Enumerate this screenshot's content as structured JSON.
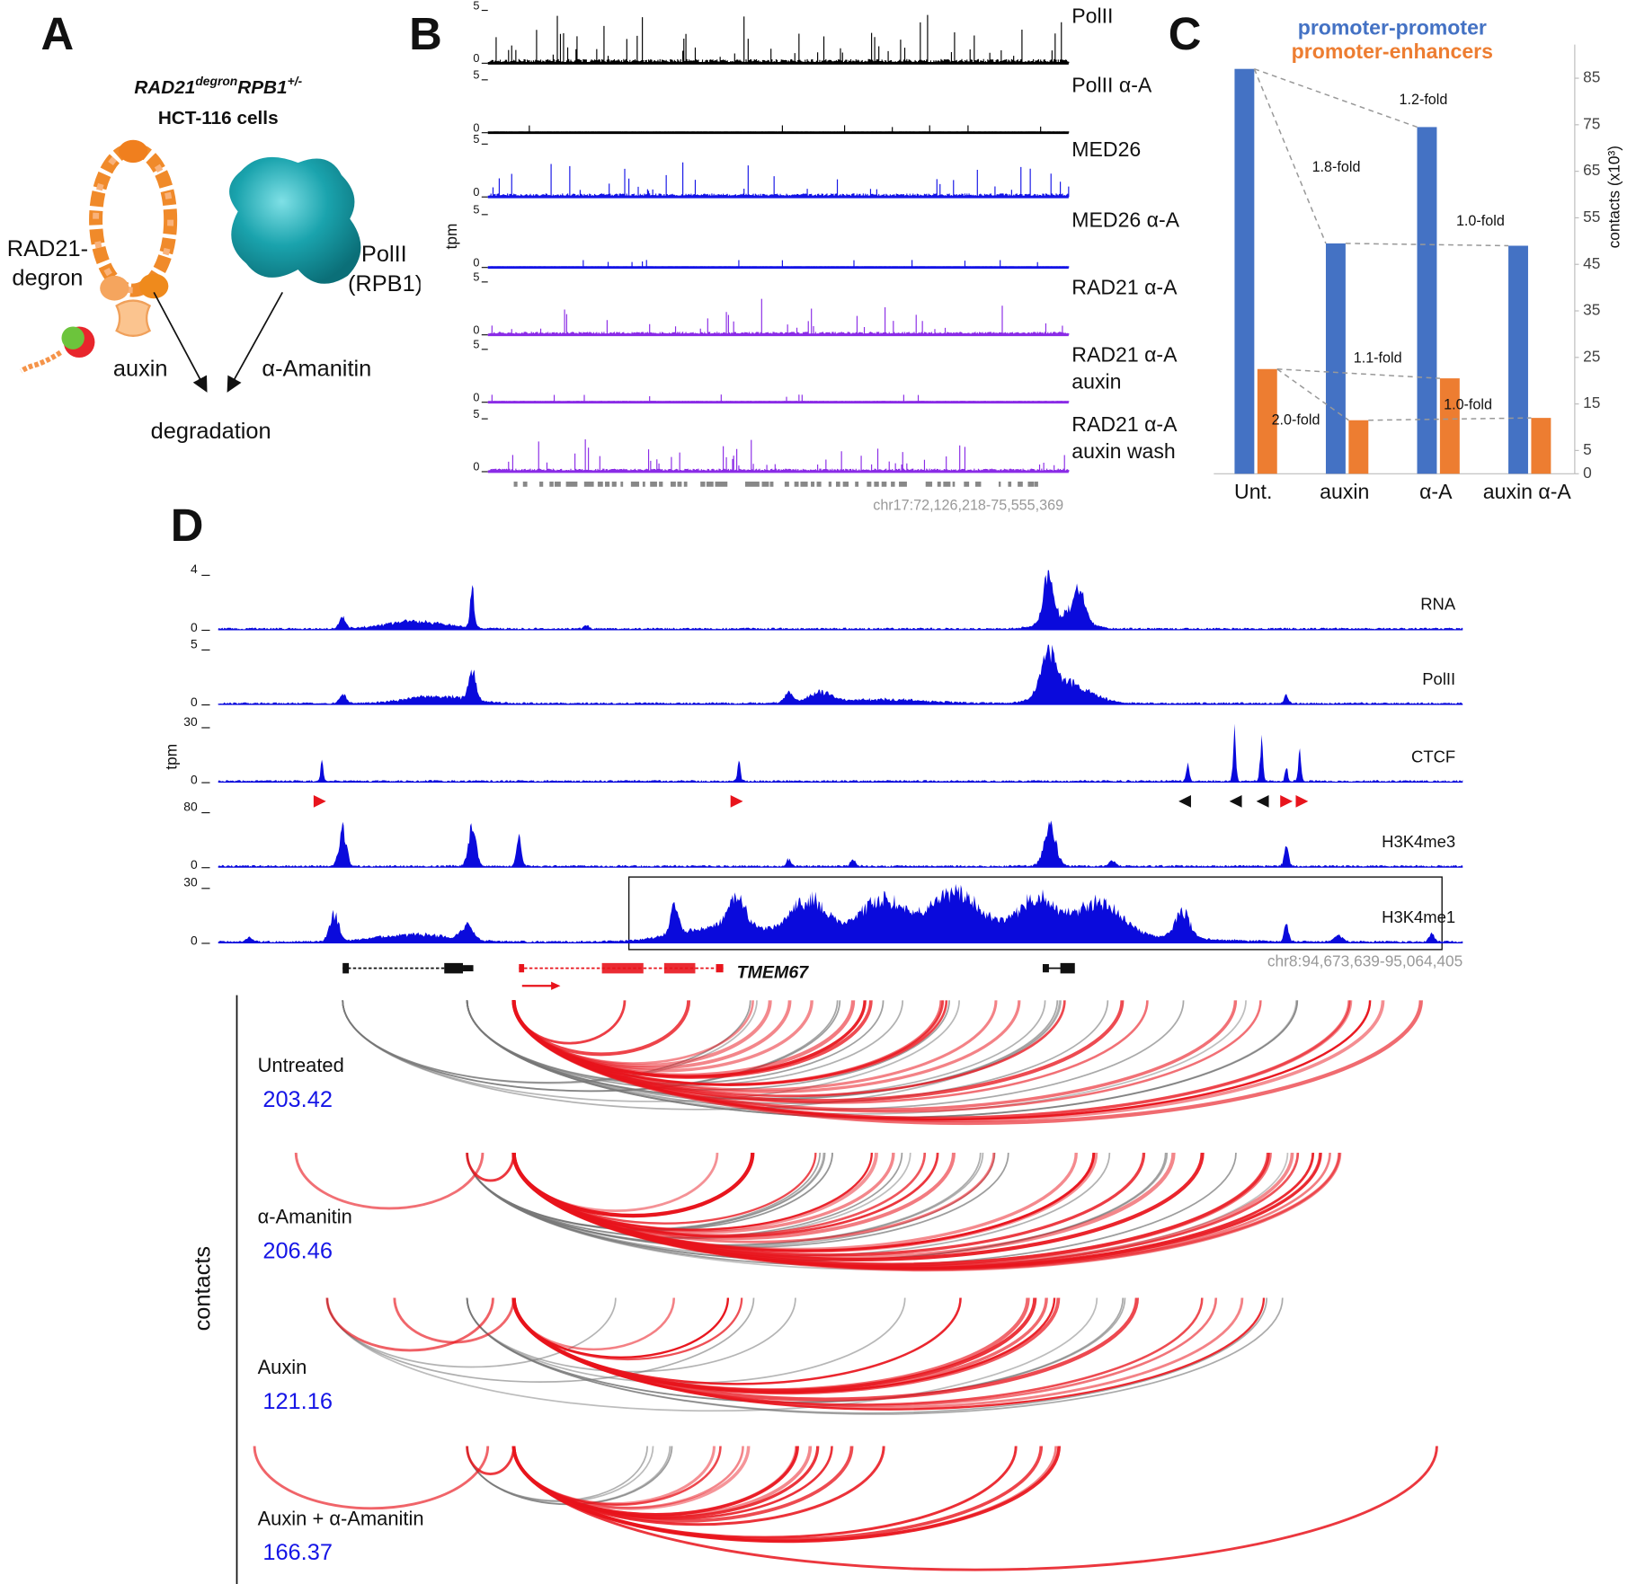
{
  "panel_a": {
    "label": "A",
    "title": {
      "gene1": "RAD21",
      "sup1": "degron",
      "gene2": "RPB1",
      "sup2": "+/-"
    },
    "subtitle": "HCT-116 cells",
    "cohesin": "RAD21-degron",
    "polii": "PolII (RPB1)",
    "treatment1": "auxin",
    "treatment2": "α-Amanitin",
    "outcome": "degradation"
  },
  "panel_b": {
    "label": "B",
    "y_label": "tpm",
    "tracks": [
      {
        "name": "PolII",
        "ymin": 0,
        "ymax": 5,
        "color": "#000000"
      },
      {
        "name": "PolII α-A",
        "ymin": 0,
        "ymax": 5,
        "color": "#000000"
      },
      {
        "name": "MED26",
        "ymin": 0,
        "ymax": 5,
        "color": "#1414e6"
      },
      {
        "name": "MED26 α-A",
        "ymin": 0,
        "ymax": 5,
        "color": "#1414e6"
      },
      {
        "name": "RAD21 α-A",
        "ymin": 0,
        "ymax": 5,
        "color": "#8a2be6"
      },
      {
        "name": "RAD21 α-A auxin",
        "ymin": 0,
        "ymax": 5,
        "color": "#8a2be6"
      },
      {
        "name": "RAD21 α-A auxin wash",
        "ymin": 0,
        "ymax": 5,
        "color": "#8a2be6"
      }
    ],
    "region": "chr17:72,126,218-75,555,369"
  },
  "chart_data": {
    "type": "bar",
    "panel_label": "C",
    "categories": [
      "Unt.",
      "auxin",
      "α-A",
      "auxin α-A"
    ],
    "series": [
      {
        "name": "promoter-promoter",
        "color": "#4472c4",
        "values": [
          87,
          49.5,
          74.5,
          49
        ]
      },
      {
        "name": "promoter-enhancers",
        "color": "#ed7d31",
        "values": [
          22.5,
          11.5,
          20.5,
          12
        ]
      }
    ],
    "ylim": [
      0,
      90
    ],
    "yticks": [
      0,
      5,
      15,
      25,
      35,
      45,
      55,
      65,
      75,
      85
    ],
    "y_label": "contacts (x10³)",
    "annotations": [
      "1.2-fold",
      "1.8-fold",
      "1.0-fold",
      "1.1-fold",
      "2.0-fold",
      "1.0-fold"
    ]
  },
  "panel_d": {
    "label": "D",
    "y_label": "tpm",
    "tracks": [
      {
        "name": "RNA",
        "ymin": 0,
        "ymax": 4
      },
      {
        "name": "PolII",
        "ymin": 0,
        "ymax": 5
      },
      {
        "name": "CTCF",
        "ymin": 0,
        "ymax": 30
      },
      {
        "name": "H3K4me3",
        "ymin": 0,
        "ymax": 80
      },
      {
        "name": "H3K4me1",
        "ymin": 0,
        "ymax": 30
      }
    ],
    "color": "#0a0adc",
    "gene": "TMEM67",
    "region": "chr8:94,673,639-95,064,405",
    "contacts_label": "contacts",
    "conditions": [
      {
        "name": "Untreated",
        "value": 203.42
      },
      {
        "name": "α-Amanitin",
        "value": 206.46
      },
      {
        "name": "Auxin",
        "value": 121.16
      },
      {
        "name": "Auxin + α-Amanitin",
        "value": 166.37
      }
    ]
  }
}
